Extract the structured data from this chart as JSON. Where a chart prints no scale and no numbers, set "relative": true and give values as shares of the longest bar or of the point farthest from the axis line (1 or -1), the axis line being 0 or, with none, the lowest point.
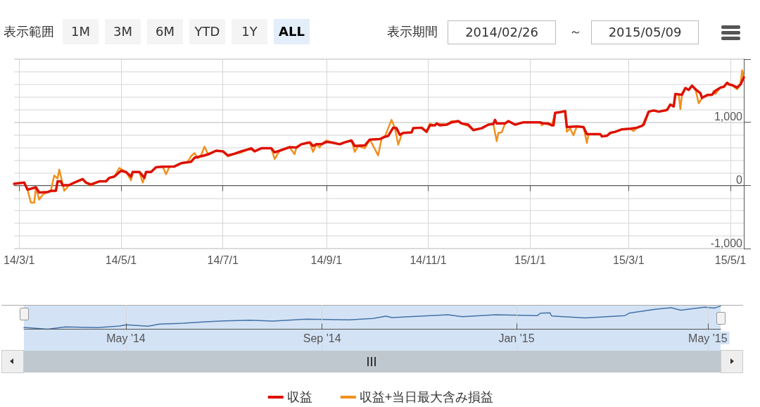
{
  "chart_data": [
    {
      "type": "line",
      "annotations": [
        "表示範囲",
        "1M",
        "3M",
        "6M",
        "YTD",
        "1Y",
        "ALL",
        "表示期間",
        "2014/02/26",
        "～",
        "2015/05/09"
      ],
      "xlim": [
        "2014-02-26",
        "2015-05-09"
      ],
      "xticks": [
        {
          "value": "2014-03-01",
          "label": "14/3/1"
        },
        {
          "value": "2014-05-01",
          "label": "14/5/1"
        },
        {
          "value": "2014-07-01",
          "label": "14/7/1"
        },
        {
          "value": "2014-09-01",
          "label": "14/9/1"
        },
        {
          "value": "2014-11-01",
          "label": "14/11/1"
        },
        {
          "value": "2015-01-01",
          "label": "15/1/1"
        },
        {
          "value": "2015-03-01",
          "label": "15/3/1"
        },
        {
          "value": "2015-05-01",
          "label": "15/5/1"
        }
      ],
      "ylim": [
        -1000,
        2000
      ],
      "yticks": [
        {
          "value": -1000,
          "label": "-1,000"
        },
        0,
        {
          "value": 1000,
          "label": "1,000"
        },
        {
          "value": 2000,
          "label": null
        }
      ],
      "grid": true,
      "legend": "bottom",
      "marker": "none",
      "line_style": "solid",
      "series": [
        {
          "name": "収益",
          "color": "#dd1100",
          "x": [
            "2014-02-26",
            "2014-03-04",
            "2014-03-06",
            "2014-03-11",
            "2014-03-13",
            "2014-03-18",
            "2014-03-20",
            "2014-03-23",
            "2014-03-24",
            "2014-03-26",
            "2014-03-27",
            "2014-03-31",
            "2014-04-03",
            "2014-04-08",
            "2014-04-10",
            "2014-04-13",
            "2014-04-16",
            "2014-04-18",
            "2014-04-22",
            "2014-04-24",
            "2014-04-27",
            "2014-05-01",
            "2014-05-04",
            "2014-05-07",
            "2014-05-08",
            "2014-05-12",
            "2014-05-15",
            "2014-05-16",
            "2014-05-19",
            "2014-05-22",
            "2014-05-26",
            "2014-06-02",
            "2014-06-06",
            "2014-06-12",
            "2014-06-14",
            "2014-06-20",
            "2014-06-23",
            "2014-06-27",
            "2014-07-01",
            "2014-07-04",
            "2014-07-07",
            "2014-07-12",
            "2014-07-15",
            "2014-07-18",
            "2014-07-20",
            "2014-07-24",
            "2014-07-30",
            "2014-08-01",
            "2014-08-04",
            "2014-08-10",
            "2014-08-14",
            "2014-08-17",
            "2014-08-20",
            "2014-08-22",
            "2014-08-24",
            "2014-08-26",
            "2014-08-29",
            "2014-09-01",
            "2014-09-04",
            "2014-09-09",
            "2014-09-12",
            "2014-09-16",
            "2014-09-18",
            "2014-09-24",
            "2014-09-27",
            "2014-10-03",
            "2014-10-06",
            "2014-10-08",
            "2014-10-11",
            "2014-10-13",
            "2014-10-15",
            "2014-10-17",
            "2014-10-22",
            "2014-10-23",
            "2014-10-28",
            "2014-10-31",
            "2014-11-02",
            "2014-11-05",
            "2014-11-06",
            "2014-11-08",
            "2014-11-12",
            "2014-11-15",
            "2014-11-19",
            "2014-11-21",
            "2014-11-25",
            "2014-11-28",
            "2014-12-03",
            "2014-12-07",
            "2014-12-10",
            "2014-12-11",
            "2014-12-12",
            "2014-12-17",
            "2014-12-19",
            "2014-12-23",
            "2014-12-28",
            "2015-01-07",
            "2015-01-09",
            "2015-01-12",
            "2015-01-14",
            "2015-01-15",
            "2015-01-16",
            "2015-01-19",
            "2015-01-22",
            "2015-01-23",
            "2015-01-29",
            "2015-02-02",
            "2015-02-04",
            "2015-02-12",
            "2015-02-13",
            "2015-02-16",
            "2015-02-18",
            "2015-02-21",
            "2015-02-25",
            "2015-03-02",
            "2015-03-06",
            "2015-03-09",
            "2015-03-10",
            "2015-03-13",
            "2015-03-16",
            "2015-03-19",
            "2015-03-24",
            "2015-03-26",
            "2015-03-28",
            "2015-03-29",
            "2015-04-02",
            "2015-04-04",
            "2015-04-06",
            "2015-04-08",
            "2015-04-10",
            "2015-04-13",
            "2015-04-14",
            "2015-04-17",
            "2015-04-20",
            "2015-04-22",
            "2015-04-25",
            "2015-04-27",
            "2015-04-29",
            "2015-04-30",
            "2015-05-02",
            "2015-05-05",
            "2015-05-07",
            "2015-05-08",
            "2015-05-09"
          ],
          "values": [
            25,
            45,
            -67,
            -30,
            -112,
            -105,
            -86,
            -86,
            64,
            64,
            0,
            7,
            45,
            100,
            45,
            15,
            45,
            64,
            64,
            120,
            140,
            232,
            213,
            140,
            213,
            213,
            120,
            213,
            213,
            288,
            296,
            300,
            352,
            375,
            438,
            475,
            500,
            550,
            540,
            475,
            494,
            540,
            562,
            588,
            540,
            588,
            588,
            524,
            550,
            607,
            600,
            652,
            670,
            682,
            625,
            652,
            652,
            689,
            682,
            652,
            682,
            712,
            625,
            633,
            727,
            734,
            771,
            783,
            914,
            906,
            801,
            831,
            839,
            906,
            914,
            850,
            951,
            951,
            981,
            951,
            962,
            1000,
            1019,
            981,
            962,
            876,
            906,
            962,
            974,
            1037,
            981,
            981,
            1019,
            962,
            1000,
            1000,
            981,
            981,
            951,
            951,
            1150,
            1161,
            1176,
            925,
            936,
            925,
            813,
            813,
            775,
            786,
            831,
            850,
            888,
            899,
            914,
            944,
            962,
            1168,
            1187,
            1168,
            1195,
            1281,
            1251,
            1449,
            1438,
            1543,
            1513,
            1580,
            1524,
            1460,
            1386,
            1430,
            1438,
            1498,
            1550,
            1562,
            1625,
            1600,
            1588,
            1550,
            1600,
            1655,
            1711
          ]
        },
        {
          "name": "収益+当日最大含み損益",
          "color": "#f0901e",
          "x": [
            "2014-02-26",
            "2014-03-04",
            "2014-03-06",
            "2014-03-08",
            "2014-03-10",
            "2014-03-11",
            "2014-03-13",
            "2014-03-15",
            "2014-03-18",
            "2014-03-20",
            "2014-03-22",
            "2014-03-24",
            "2014-03-25",
            "2014-03-27",
            "2014-03-28",
            "2014-03-31",
            "2014-04-03",
            "2014-04-08",
            "2014-04-10",
            "2014-04-13",
            "2014-04-16",
            "2014-04-18",
            "2014-04-22",
            "2014-04-24",
            "2014-04-27",
            "2014-04-30",
            "2014-05-04",
            "2014-05-07",
            "2014-05-08",
            "2014-05-12",
            "2014-05-14",
            "2014-05-16",
            "2014-05-19",
            "2014-05-22",
            "2014-05-26",
            "2014-05-28",
            "2014-05-30",
            "2014-06-02",
            "2014-06-06",
            "2014-06-10",
            "2014-06-12",
            "2014-06-14",
            "2014-06-16",
            "2014-06-18",
            "2014-06-20",
            "2014-06-22",
            "2014-06-27",
            "2014-07-01",
            "2014-07-04",
            "2014-07-07",
            "2014-07-12",
            "2014-07-15",
            "2014-07-18",
            "2014-07-20",
            "2014-07-24",
            "2014-07-30",
            "2014-08-01",
            "2014-08-04",
            "2014-08-10",
            "2014-08-13",
            "2014-08-14",
            "2014-08-17",
            "2014-08-20",
            "2014-08-22",
            "2014-08-24",
            "2014-08-26",
            "2014-08-28",
            "2014-08-29",
            "2014-09-01",
            "2014-09-04",
            "2014-09-09",
            "2014-09-12",
            "2014-09-16",
            "2014-09-18",
            "2014-09-20",
            "2014-09-24",
            "2014-09-27",
            "2014-10-02",
            "2014-10-04",
            "2014-10-06",
            "2014-10-08",
            "2014-10-10",
            "2014-10-12",
            "2014-10-14",
            "2014-10-16",
            "2014-10-17",
            "2014-10-22",
            "2014-10-23",
            "2014-10-28",
            "2014-10-31",
            "2014-11-02",
            "2014-11-05",
            "2014-11-06",
            "2014-11-12",
            "2014-11-15",
            "2014-11-19",
            "2014-11-21",
            "2014-11-25",
            "2014-11-28",
            "2014-12-03",
            "2014-12-07",
            "2014-12-10",
            "2014-12-12",
            "2014-12-13",
            "2014-12-15",
            "2014-12-17",
            "2014-12-19",
            "2014-12-23",
            "2014-12-28",
            "2015-01-07",
            "2015-01-08",
            "2015-01-09",
            "2015-01-14",
            "2015-01-16",
            "2015-01-19",
            "2015-01-22",
            "2015-01-23",
            "2015-01-25",
            "2015-01-27",
            "2015-01-29",
            "2015-02-02",
            "2015-02-04",
            "2015-02-05",
            "2015-02-12",
            "2015-02-13",
            "2015-02-16",
            "2015-02-18",
            "2015-02-21",
            "2015-02-25",
            "2015-03-02",
            "2015-03-04",
            "2015-03-06",
            "2015-03-09",
            "2015-03-13",
            "2015-03-16",
            "2015-03-19",
            "2015-03-24",
            "2015-03-26",
            "2015-03-28",
            "2015-03-29",
            "2015-03-31",
            "2015-04-01",
            "2015-04-02",
            "2015-04-04",
            "2015-04-06",
            "2015-04-08",
            "2015-04-10",
            "2015-04-12",
            "2015-04-14",
            "2015-04-17",
            "2015-04-20",
            "2015-04-21",
            "2015-04-22",
            "2015-04-25",
            "2015-04-27",
            "2015-04-29",
            "2015-05-02",
            "2015-05-05",
            "2015-05-07",
            "2015-05-08",
            "2015-05-09"
          ],
          "values": [
            25,
            45,
            -67,
            -273,
            -273,
            -40,
            -225,
            -150,
            -105,
            -80,
            157,
            110,
            251,
            30,
            -86,
            7,
            45,
            100,
            45,
            0,
            45,
            64,
            64,
            120,
            140,
            277,
            213,
            82,
            213,
            213,
            45,
            213,
            213,
            288,
            296,
            176,
            296,
            300,
            352,
            375,
            464,
            513,
            430,
            480,
            614,
            500,
            550,
            540,
            460,
            494,
            520,
            562,
            570,
            540,
            588,
            588,
            419,
            550,
            600,
            494,
            600,
            652,
            670,
            682,
            532,
            652,
            600,
            652,
            712,
            682,
            652,
            682,
            712,
            532,
            625,
            588,
            727,
            476,
            734,
            771,
            906,
            1037,
            914,
            644,
            801,
            831,
            839,
            906,
            914,
            850,
            981,
            951,
            981,
            962,
            1019,
            1019,
            981,
            940,
            876,
            906,
            962,
            974,
            700,
            831,
            840,
            981,
            1019,
            962,
            1000,
            1000,
            951,
            981,
            951,
            1150,
            1161,
            1176,
            850,
            900,
            794,
            936,
            925,
            674,
            813,
            813,
            775,
            786,
            831,
            850,
            888,
            899,
            861,
            914,
            944,
            1168,
            1187,
            1168,
            1195,
            1281,
            1251,
            1449,
            1438,
            1206,
            1438,
            1543,
            1513,
            1580,
            1524,
            1300,
            1386,
            1430,
            1438,
            1500,
            1449,
            1550,
            1562,
            1625,
            1588,
            1524,
            1600,
            1824,
            1711
          ]
        }
      ]
    },
    {
      "type": "line",
      "relative": true,
      "tick_labels": "x",
      "grid": "x",
      "marker": "none",
      "xlim": [
        "2014-02-26",
        "2015-05-09"
      ],
      "xticks": [
        {
          "value": "2014-05-01",
          "label": "May '14"
        },
        {
          "value": "2014-09-01",
          "label": "Sep '14"
        },
        {
          "value": "2015-01-01",
          "label": "Jan '15"
        },
        {
          "value": "2015-05-01",
          "label": "May '15"
        }
      ],
      "series": [
        {
          "color": "#4572a7",
          "x": [
            "2014-02-26",
            "2014-03-13",
            "2014-03-24",
            "2014-04-13",
            "2014-04-27",
            "2014-05-01",
            "2014-05-15",
            "2014-05-22",
            "2014-06-06",
            "2014-06-20",
            "2014-07-01",
            "2014-07-18",
            "2014-08-01",
            "2014-08-22",
            "2014-09-18",
            "2014-10-03",
            "2014-10-11",
            "2014-10-15",
            "2014-11-19",
            "2014-11-28",
            "2014-12-19",
            "2015-01-14",
            "2015-01-16",
            "2015-01-22",
            "2015-01-23",
            "2015-02-13",
            "2015-03-10",
            "2015-03-13",
            "2015-03-29",
            "2015-04-08",
            "2015-04-14",
            "2015-04-29",
            "2015-05-05",
            "2015-05-09"
          ],
          "values": [
            0.075,
            0,
            0.097,
            0.07,
            0.138,
            0.189,
            0.127,
            0.22,
            0.255,
            0.322,
            0.358,
            0.384,
            0.349,
            0.436,
            0.404,
            0.464,
            0.563,
            0.501,
            0.62,
            0.542,
            0.62,
            0.583,
            0.692,
            0.707,
            0.569,
            0.487,
            0.589,
            0.702,
            0.856,
            0.928,
            0.822,
            0.953,
            0.912,
            1
          ]
        }
      ]
    }
  ]
}
